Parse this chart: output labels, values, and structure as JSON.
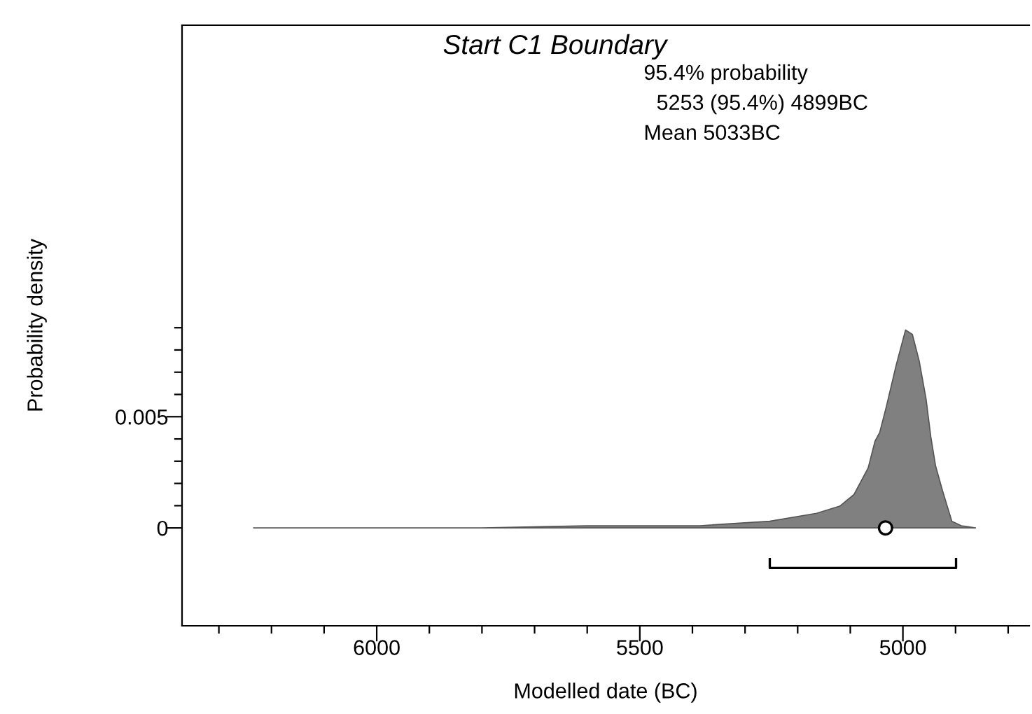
{
  "chart_data": {
    "type": "area",
    "title": "Start C1 Boundary",
    "xlabel": "Modelled date (BC)",
    "ylabel": "Probability density",
    "annotations": [
      "95.4% probability",
      "5253 (95.4%) 4899BC",
      "Mean 5033BC"
    ],
    "series": [
      {
        "color": "#808080",
        "x": [
          6234,
          5800,
          5600,
          5500,
          5386,
          5253,
          5164,
          5120,
          5093,
          5066,
          5053,
          5044,
          5031,
          5013,
          4995,
          4982,
          4969,
          4956,
          4947,
          4938,
          4925,
          4907,
          4889,
          4862
        ],
        "values": [
          0,
          0,
          0.0001,
          0.0001,
          0.0001,
          0.0003,
          0.00066,
          0.00098,
          0.0015,
          0.0027,
          0.0039,
          0.0043,
          0.0055,
          0.0073,
          0.0089,
          0.0087,
          0.0075,
          0.0058,
          0.0041,
          0.0028,
          0.0017,
          0.0003,
          0.0001,
          0
        ]
      },
      {
        "type": "line",
        "color": "#000000",
        "x": [
          5253,
          5253,
          4899,
          4899
        ],
        "values": [
          -0.0014,
          -0.0018,
          -0.0018,
          -0.0014
        ]
      },
      {
        "type": "scatter",
        "color": "#ffffff",
        "marker": "circle",
        "x": [
          5033
        ],
        "values": [
          0
        ]
      }
    ],
    "xlim": [
      6370,
      4760
    ],
    "ylim": [
      -0.0044,
      0.0226
    ],
    "xticks": [
      {
        "value": 6300,
        "label": null
      },
      {
        "value": 6200,
        "label": null
      },
      {
        "value": 6100,
        "label": null
      },
      6000,
      {
        "value": 5900,
        "label": null
      },
      {
        "value": 5800,
        "label": null
      },
      {
        "value": 5700,
        "label": null
      },
      {
        "value": 5600,
        "label": null
      },
      5500,
      {
        "value": 5400,
        "label": null
      },
      {
        "value": 5300,
        "label": null
      },
      {
        "value": 5200,
        "label": null
      },
      {
        "value": 5100,
        "label": null
      },
      5000,
      {
        "value": 4900,
        "label": null
      },
      {
        "value": 4800,
        "label": null
      }
    ],
    "yticks": [
      0,
      {
        "value": 0.001,
        "label": null
      },
      {
        "value": 0.002,
        "label": null
      },
      {
        "value": 0.003,
        "label": null
      },
      {
        "value": 0.004,
        "label": null
      },
      0.005,
      {
        "value": 0.006,
        "label": null
      },
      {
        "value": 0.007,
        "label": null
      },
      {
        "value": 0.008,
        "label": null
      },
      {
        "value": 0.009,
        "label": null
      }
    ],
    "grid": false,
    "legend": false
  }
}
